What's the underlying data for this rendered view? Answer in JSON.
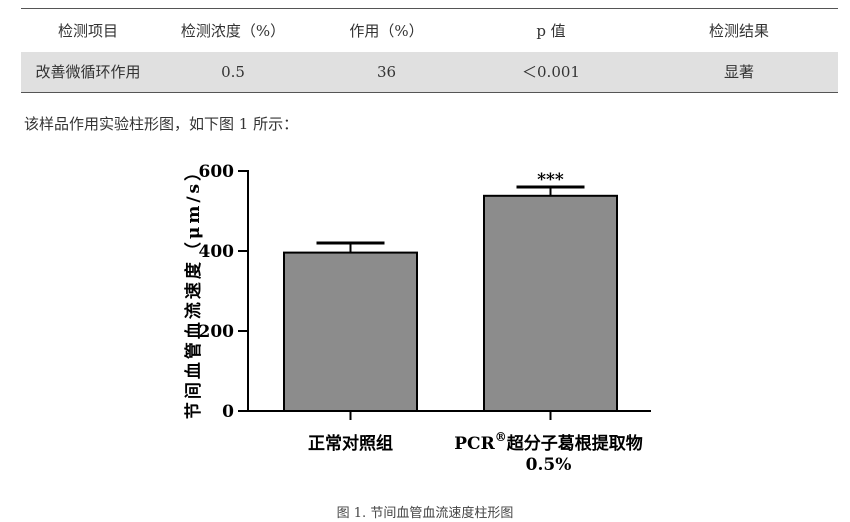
{
  "table": {
    "headers": [
      "检测项目",
      "检测浓度（%）",
      "作用（%）",
      "p 值",
      "检测结果"
    ],
    "rows": [
      [
        "改善微循环作用",
        "0.5",
        "36",
        "＜0.001",
        "显著"
      ]
    ]
  },
  "intro_text": "该样品作用实验柱形图，如下图 1 所示：",
  "chart_data": {
    "type": "bar",
    "ylabel": "节间血管血流速度（μm/s）",
    "ylim": [
      0,
      600
    ],
    "yticks": [
      0,
      200,
      400,
      600
    ],
    "categories": [
      {
        "line1": "正常对照组",
        "line2": ""
      },
      {
        "line1_prefix": "PCR",
        "line1_super": "®",
        "line1_suffix": "超分子葛根提取物",
        "line2": "0.5%"
      }
    ],
    "values": [
      396,
      538
    ],
    "errors": [
      24,
      22
    ],
    "significance": [
      "",
      "***"
    ],
    "bar_color": "#8c8c8c"
  },
  "caption": "图 1.  节间血管血流速度柱形图"
}
